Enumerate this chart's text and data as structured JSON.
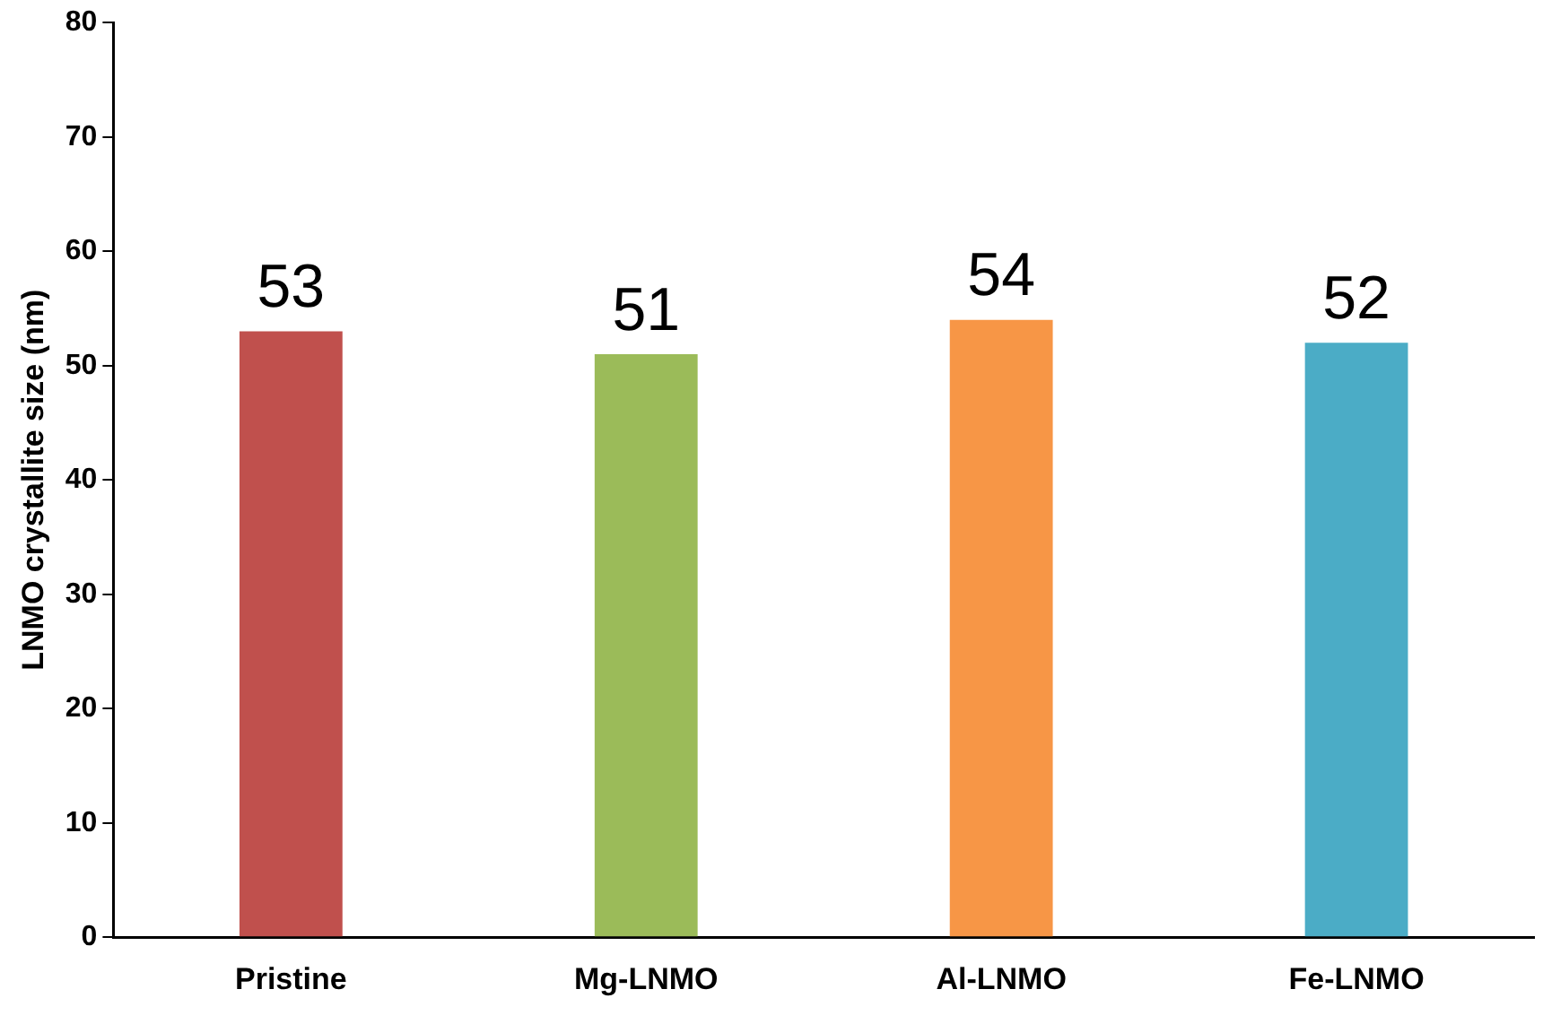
{
  "chart_data": {
    "type": "bar",
    "ylabel": "LNMO crystallite size (nm)",
    "categories": [
      "Pristine",
      "Mg-LNMO",
      "Al-LNMO",
      "Fe-LNMO"
    ],
    "values": [
      53,
      51,
      54,
      52
    ],
    "colors": [
      "#c0504d",
      "#9bbb59",
      "#f79646",
      "#4bacc6"
    ],
    "ylim": [
      0,
      80
    ],
    "yticks": [
      0,
      10,
      20,
      30,
      40,
      50,
      60,
      70,
      80
    ],
    "grid": false,
    "legend": false,
    "data_labels": true
  }
}
